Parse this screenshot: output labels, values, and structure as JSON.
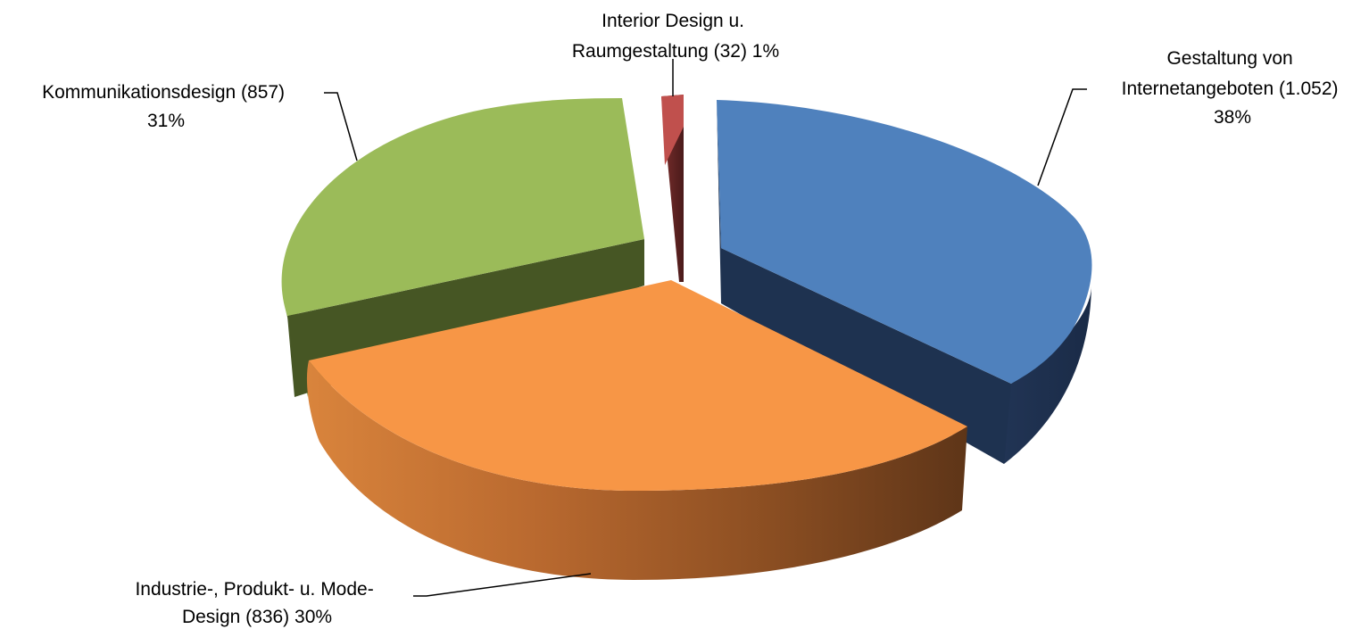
{
  "chart_data": {
    "type": "pie",
    "style": "3d-exploded",
    "title": "",
    "slices": [
      {
        "category": "Gestaltung von Internetangeboten",
        "value": 1052,
        "percent": 38,
        "label_lines": [
          "Gestaltung von",
          "Internetangeboten (1.052)",
          "38%"
        ],
        "color": "#4F81BD"
      },
      {
        "category": "Industrie-, Produkt- u. Mode-Design",
        "value": 836,
        "percent": 30,
        "label_lines": [
          "Industrie-, Produkt- u. Mode-",
          "Design (836) 30%"
        ],
        "color": "#F79646"
      },
      {
        "category": "Kommunikationsdesign",
        "value": 857,
        "percent": 31,
        "label_lines": [
          "Kommunikationsdesign (857)",
          "31%"
        ],
        "color": "#9BBB59"
      },
      {
        "category": "Interior Design u. Raumgestaltung",
        "value": 32,
        "percent": 1,
        "label_lines": [
          "Interior Design u.",
          "Raumgestaltung (32) 1%"
        ],
        "color": "#C0504D"
      }
    ],
    "legend": "none"
  }
}
